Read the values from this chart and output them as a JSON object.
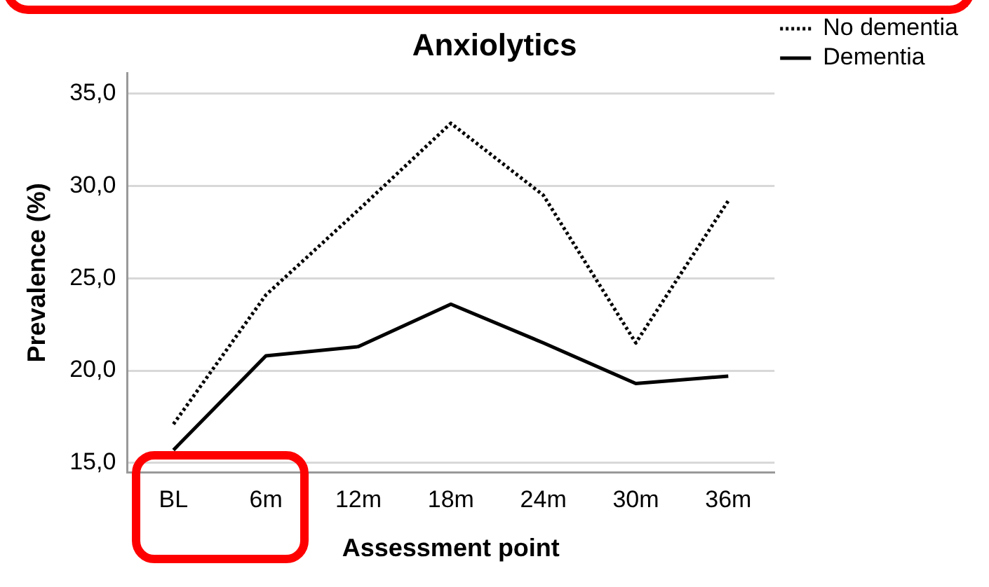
{
  "chart_data": {
    "type": "line",
    "title": "Anxiolytics",
    "xlabel": "Assessment point",
    "ylabel": "Prevalence (%)",
    "categories": [
      "BL",
      "6m",
      "12m",
      "18m",
      "24m",
      "30m",
      "36m"
    ],
    "series": [
      {
        "name": "No dementia",
        "color": "#000000",
        "line_style": "dotted",
        "values": [
          17.1,
          24.1,
          28.7,
          33.4,
          29.5,
          21.5,
          29.2
        ]
      },
      {
        "name": "Dementia",
        "color": "#000000",
        "line_style": "solid",
        "values": [
          15.7,
          20.8,
          21.3,
          23.6,
          21.5,
          19.3,
          19.7
        ]
      }
    ],
    "ylim": [
      14.5,
      36.1
    ],
    "yticks": [
      {
        "value": 15,
        "label": "15,0"
      },
      {
        "value": 20,
        "label": "20,0"
      },
      {
        "value": 25,
        "label": "25,0"
      },
      {
        "value": 30,
        "label": "30,0"
      },
      {
        "value": 35,
        "label": "35,0"
      }
    ],
    "grid": "y",
    "legend": "top right",
    "marker": "none"
  }
}
